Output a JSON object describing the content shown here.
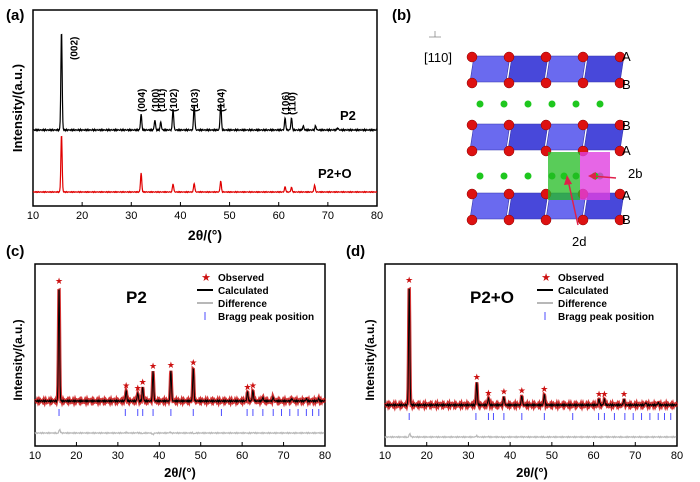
{
  "panels": {
    "a": {
      "label": "(a)",
      "xlabel": "2θ/(°)",
      "ylabel": "Intensity/(a.u.)",
      "ticks": [
        "10",
        "20",
        "30",
        "40",
        "50",
        "60",
        "70",
        "80"
      ],
      "series_p2": "P2",
      "series_p2o": "P2+O",
      "peaks": [
        {
          "t": "(002)",
          "x": 15.8
        },
        {
          "t": "(004)",
          "x": 32.0
        },
        {
          "t": "(100)",
          "x": 34.8
        },
        {
          "t": "(101)",
          "x": 36.0
        },
        {
          "t": "(102)",
          "x": 38.5
        },
        {
          "t": "(103)",
          "x": 42.8
        },
        {
          "t": "(104)",
          "x": 48.2
        },
        {
          "t": "(106)",
          "x": 61.3
        },
        {
          "t": "(110)",
          "x": 62.6
        }
      ]
    },
    "b": {
      "label": "(b)",
      "direction": "[110]",
      "layers": [
        "A",
        "B",
        "B",
        "A",
        "A",
        "B"
      ],
      "site_2b": "2b",
      "site_2d": "2d"
    },
    "c": {
      "label": "(c)",
      "title": "P2",
      "xlabel": "2θ/(°)",
      "ylabel": "Intensity/(a.u.)",
      "ticks": [
        "10",
        "20",
        "30",
        "40",
        "50",
        "60",
        "70",
        "80"
      ]
    },
    "d": {
      "label": "(d)",
      "title": "P2+O",
      "xlabel": "2θ/(°)",
      "ylabel": "Intensity/(a.u.)",
      "ticks": [
        "10",
        "20",
        "30",
        "40",
        "50",
        "60",
        "70",
        "80"
      ]
    }
  },
  "legend": {
    "observed": "Observed",
    "calculated": "Calculated",
    "difference": "Difference",
    "bragg": "Bragg peak position"
  },
  "colors": {
    "p2": "#000000",
    "p2o": "#e00000",
    "observed": "#cc1010",
    "difference": "#b8b8b8",
    "bragg": "#4d4dff"
  },
  "chart_data": [
    {
      "type": "line",
      "panel": "a",
      "xlim": [
        10,
        80
      ],
      "xlabel": "2θ/(°)",
      "ylabel": "Intensity/(a.u.)",
      "series": [
        {
          "name": "P2",
          "peaks_x": [
            15.8,
            32.0,
            34.8,
            36.0,
            38.5,
            42.8,
            48.2,
            61.3,
            62.6,
            65.0,
            67.5,
            72.0
          ],
          "peaks_rel": [
            1.0,
            0.16,
            0.1,
            0.08,
            0.21,
            0.25,
            0.27,
            0.12,
            0.12,
            0.04,
            0.04,
            0.02
          ]
        },
        {
          "name": "P2+O",
          "peaks_x": [
            15.8,
            32.0,
            38.5,
            42.8,
            48.2,
            61.3,
            62.6,
            67.3
          ],
          "peaks_rel": [
            1.0,
            0.33,
            0.14,
            0.15,
            0.19,
            0.09,
            0.08,
            0.12
          ]
        }
      ]
    },
    {
      "type": "line",
      "panel": "c",
      "xlim": [
        10,
        80
      ],
      "peaks_x": [
        15.8,
        32.0,
        34.8,
        36.0,
        38.5,
        42.8,
        48.2,
        61.3,
        62.6,
        65.0,
        67.5,
        72.0,
        75.5,
        78.5
      ],
      "peaks_rel": [
        1.0,
        0.09,
        0.07,
        0.12,
        0.26,
        0.27,
        0.29,
        0.08,
        0.09,
        0.03,
        0.03,
        0.02,
        0.02,
        0.02
      ],
      "bragg_x": [
        15.8,
        31.8,
        34.8,
        36.0,
        38.5,
        42.8,
        48.2,
        55.0,
        61.2,
        62.6,
        65.0,
        67.5,
        69.5,
        71.5,
        73.5,
        75.5,
        77.0,
        78.5
      ]
    },
    {
      "type": "line",
      "panel": "d",
      "xlim": [
        10,
        80
      ],
      "peaks_x": [
        15.8,
        32.0,
        34.8,
        38.5,
        42.8,
        48.2,
        61.3,
        62.6,
        67.3,
        72.5,
        75.5
      ],
      "peaks_rel": [
        1.0,
        0.19,
        0.06,
        0.07,
        0.08,
        0.09,
        0.05,
        0.05,
        0.05,
        0.02,
        0.02
      ],
      "bragg_x": [
        15.8,
        31.8,
        34.8,
        36.0,
        38.5,
        42.8,
        48.2,
        55.0,
        61.2,
        62.6,
        65.0,
        67.5,
        69.5,
        71.5,
        73.5,
        75.5,
        77.0,
        78.5
      ]
    }
  ]
}
